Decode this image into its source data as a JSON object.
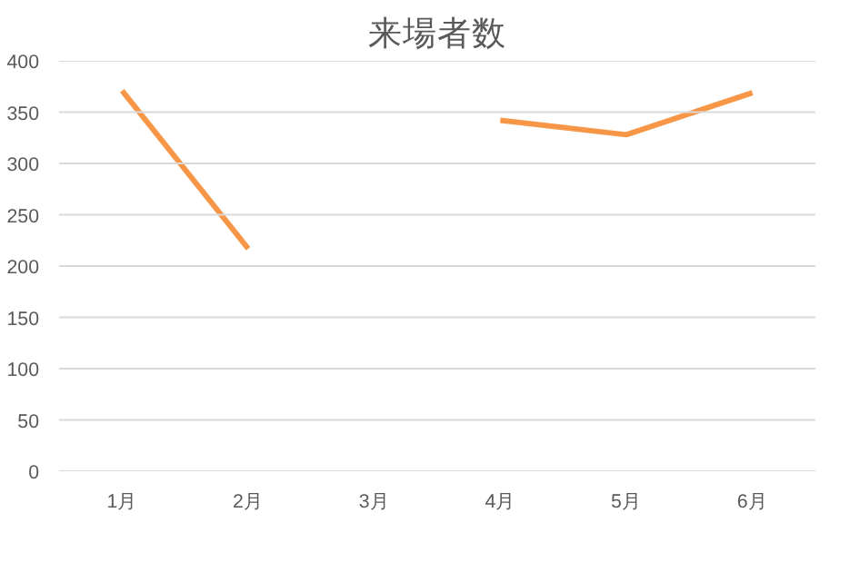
{
  "chart_data": {
    "type": "line",
    "title": "来場者数",
    "categories": [
      "1月",
      "2月",
      "3月",
      "4月",
      "5月",
      "6月"
    ],
    "series": [
      {
        "color": "#f79646",
        "values": [
          371,
          217,
          null,
          342,
          328,
          369
        ]
      }
    ],
    "ylim": [
      0,
      400
    ],
    "yticks": [
      0,
      50,
      100,
      150,
      200,
      250,
      300,
      350,
      400
    ],
    "grid": "y",
    "marker": "none",
    "line_style": "solid"
  }
}
